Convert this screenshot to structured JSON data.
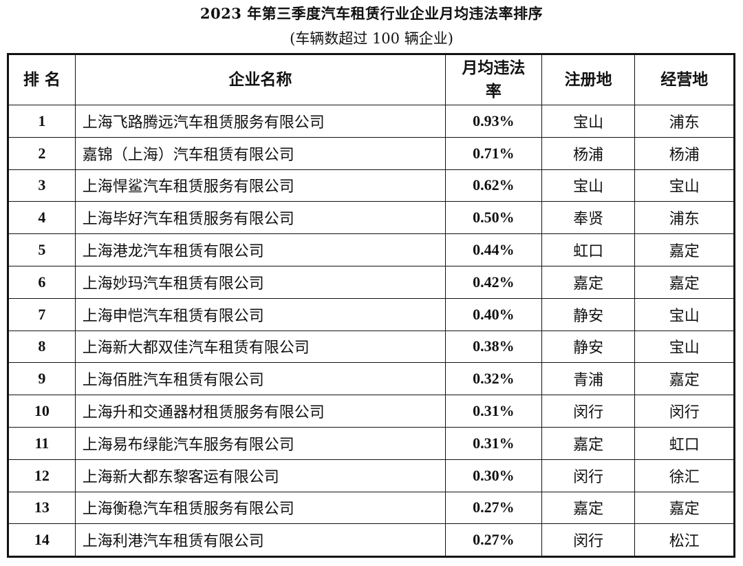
{
  "title": "2023 年第三季度汽车租赁行业企业月均违法率排序",
  "subtitle": "(车辆数超过 100 辆企业)",
  "headers": [
    "排 名",
    "企业名称",
    "月均违法率",
    "注册地",
    "经营地"
  ],
  "rows": [
    {
      "rank": "1",
      "name": "上海飞路腾远汽车租赁服务有限公司",
      "rate": "0.93%",
      "registered": "宝山",
      "operating": "浦东"
    },
    {
      "rank": "2",
      "name": "嘉锦（上海）汽车租赁有限公司",
      "rate": "0.71%",
      "registered": "杨浦",
      "operating": "杨浦"
    },
    {
      "rank": "3",
      "name": "上海悍鲨汽车租赁服务有限公司",
      "rate": "0.62%",
      "registered": "宝山",
      "operating": "宝山"
    },
    {
      "rank": "4",
      "name": "上海毕好汽车租赁服务有限公司",
      "rate": "0.50%",
      "registered": "奉贤",
      "operating": "浦东"
    },
    {
      "rank": "5",
      "name": "上海港龙汽车租赁有限公司",
      "rate": "0.44%",
      "registered": "虹口",
      "operating": "嘉定"
    },
    {
      "rank": "6",
      "name": "上海妙玛汽车租赁有限公司",
      "rate": "0.42%",
      "registered": "嘉定",
      "operating": "嘉定"
    },
    {
      "rank": "7",
      "name": "上海申恺汽车租赁有限公司",
      "rate": "0.40%",
      "registered": "静安",
      "operating": "宝山"
    },
    {
      "rank": "8",
      "name": "上海新大都双佳汽车租赁有限公司",
      "rate": "0.38%",
      "registered": "静安",
      "operating": "宝山"
    },
    {
      "rank": "9",
      "name": "上海佰胜汽车租赁有限公司",
      "rate": "0.32%",
      "registered": "青浦",
      "operating": "嘉定"
    },
    {
      "rank": "10",
      "name": "上海升和交通器材租赁服务有限公司",
      "rate": "0.31%",
      "registered": "闵行",
      "operating": "闵行"
    },
    {
      "rank": "11",
      "name": "上海易布绿能汽车服务有限公司",
      "rate": "0.31%",
      "registered": "嘉定",
      "operating": "虹口"
    },
    {
      "rank": "12",
      "name": "上海新大都东黎客运有限公司",
      "rate": "0.30%",
      "registered": "闵行",
      "operating": "徐汇"
    },
    {
      "rank": "13",
      "name": "上海衡稳汽车租赁服务有限公司",
      "rate": "0.27%",
      "registered": "嘉定",
      "operating": "嘉定"
    },
    {
      "rank": "14",
      "name": "上海利港汽车租赁有限公司",
      "rate": "0.27%",
      "registered": "闵行",
      "operating": "松江"
    }
  ]
}
